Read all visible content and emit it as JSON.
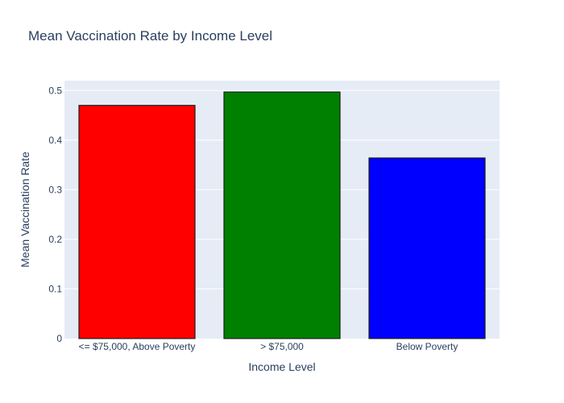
{
  "chart_data": {
    "type": "bar",
    "title": "Mean Vaccination Rate by Income Level",
    "xlabel": "Income Level",
    "ylabel": "Mean Vaccination Rate",
    "categories": [
      "<= $75,000, Above Poverty",
      "> $75,000",
      "Below Poverty"
    ],
    "values": [
      0.47,
      0.497,
      0.364
    ],
    "colors": [
      "#ff0000",
      "#008000",
      "#0000ff"
    ],
    "ylim": [
      0,
      0.52
    ],
    "yticks": [
      0,
      0.1,
      0.2,
      0.3,
      0.4,
      0.5
    ],
    "ytick_labels": [
      "0",
      "0.1",
      "0.2",
      "0.3",
      "0.4",
      "0.5"
    ],
    "grid": true,
    "legend": "none",
    "plot_background": "#e5ecf6"
  }
}
